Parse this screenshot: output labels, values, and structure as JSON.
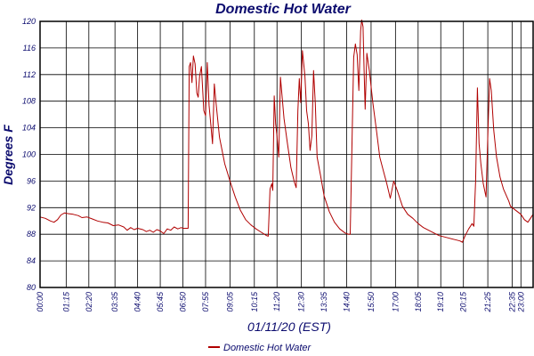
{
  "colors": {
    "series": "#b00000",
    "text": "#0b0b6e",
    "grid": "#000000",
    "background": "#ffffff"
  },
  "chart_data": {
    "type": "line",
    "title": "Domestic Hot Water",
    "xlabel": "01/11/20 (EST)",
    "ylabel": "Degrees F",
    "ylim": [
      80,
      120
    ],
    "yticks": [
      80,
      84,
      88,
      92,
      96,
      100,
      104,
      108,
      112,
      116,
      120
    ],
    "xlim": [
      "00:00",
      "23:35"
    ],
    "xticks": [
      "00:00",
      "01:15",
      "02:20",
      "03:35",
      "04:40",
      "05:45",
      "06:50",
      "07:55",
      "09:05",
      "10:15",
      "11:20",
      "12:30",
      "13:35",
      "14:40",
      "15:50",
      "17:00",
      "18:05",
      "19:10",
      "20:15",
      "21:25",
      "22:35",
      "23:00"
    ],
    "grid": true,
    "legend": "bottom-center",
    "series": [
      {
        "name": "Domestic Hot Water",
        "points": [
          [
            "00:00",
            90.6
          ],
          [
            "00:15",
            90.4
          ],
          [
            "00:30",
            90.0
          ],
          [
            "00:40",
            89.8
          ],
          [
            "00:50",
            90.2
          ],
          [
            "01:00",
            90.9
          ],
          [
            "01:10",
            91.2
          ],
          [
            "01:20",
            91.1
          ],
          [
            "01:35",
            91.0
          ],
          [
            "01:50",
            90.8
          ],
          [
            "02:00",
            90.5
          ],
          [
            "02:15",
            90.6
          ],
          [
            "02:30",
            90.3
          ],
          [
            "02:45",
            90.0
          ],
          [
            "03:00",
            89.8
          ],
          [
            "03:15",
            89.7
          ],
          [
            "03:30",
            89.3
          ],
          [
            "03:45",
            89.4
          ],
          [
            "04:00",
            89.1
          ],
          [
            "04:10",
            88.6
          ],
          [
            "04:20",
            89.0
          ],
          [
            "04:30",
            88.7
          ],
          [
            "04:40",
            88.9
          ],
          [
            "04:55",
            88.7
          ],
          [
            "05:05",
            88.4
          ],
          [
            "05:15",
            88.6
          ],
          [
            "05:25",
            88.3
          ],
          [
            "05:35",
            88.7
          ],
          [
            "05:45",
            88.5
          ],
          [
            "05:55",
            88.1
          ],
          [
            "06:05",
            88.8
          ],
          [
            "06:15",
            88.6
          ],
          [
            "06:25",
            89.1
          ],
          [
            "06:35",
            88.8
          ],
          [
            "06:45",
            89.0
          ],
          [
            "06:50",
            88.9
          ],
          [
            "07:05",
            88.9
          ],
          [
            "07:08",
            113.2
          ],
          [
            "07:12",
            113.8
          ],
          [
            "07:16",
            110.8
          ],
          [
            "07:20",
            114.8
          ],
          [
            "07:25",
            113.6
          ],
          [
            "07:30",
            109.2
          ],
          [
            "07:34",
            108.6
          ],
          [
            "07:38",
            111.8
          ],
          [
            "07:43",
            113.2
          ],
          [
            "07:50",
            106.6
          ],
          [
            "07:55",
            105.8
          ],
          [
            "08:00",
            113.8
          ],
          [
            "08:05",
            107.4
          ],
          [
            "08:10",
            104.6
          ],
          [
            "08:15",
            101.6
          ],
          [
            "08:20",
            110.6
          ],
          [
            "08:25",
            107.8
          ],
          [
            "08:35",
            102.6
          ],
          [
            "08:50",
            98.6
          ],
          [
            "09:05",
            96.0
          ],
          [
            "09:20",
            93.6
          ],
          [
            "09:35",
            91.6
          ],
          [
            "09:50",
            90.2
          ],
          [
            "10:05",
            89.4
          ],
          [
            "10:20",
            88.8
          ],
          [
            "10:35",
            88.3
          ],
          [
            "10:50",
            87.8
          ],
          [
            "10:55",
            87.7
          ],
          [
            "11:00",
            94.8
          ],
          [
            "11:05",
            95.6
          ],
          [
            "11:08",
            94.6
          ],
          [
            "11:12",
            108.8
          ],
          [
            "11:16",
            104.6
          ],
          [
            "11:20",
            102.8
          ],
          [
            "11:25",
            99.6
          ],
          [
            "11:30",
            111.6
          ],
          [
            "11:40",
            105.4
          ],
          [
            "11:50",
            101.6
          ],
          [
            "12:00",
            98.0
          ],
          [
            "12:10",
            95.8
          ],
          [
            "12:15",
            95.0
          ],
          [
            "12:20",
            106.6
          ],
          [
            "12:24",
            111.4
          ],
          [
            "12:28",
            107.8
          ],
          [
            "12:33",
            115.6
          ],
          [
            "12:40",
            111.8
          ],
          [
            "12:45",
            106.6
          ],
          [
            "12:50",
            104.6
          ],
          [
            "12:55",
            100.6
          ],
          [
            "13:00",
            102.8
          ],
          [
            "13:05",
            112.6
          ],
          [
            "13:10",
            107.6
          ],
          [
            "13:15",
            99.6
          ],
          [
            "13:25",
            96.8
          ],
          [
            "13:35",
            93.8
          ],
          [
            "13:50",
            91.4
          ],
          [
            "14:05",
            89.8
          ],
          [
            "14:20",
            88.8
          ],
          [
            "14:35",
            88.2
          ],
          [
            "14:45",
            88.0
          ],
          [
            "14:50",
            88.0
          ],
          [
            "15:00",
            114.6
          ],
          [
            "15:05",
            116.6
          ],
          [
            "15:10",
            115.0
          ],
          [
            "15:15",
            109.6
          ],
          [
            "15:20",
            118.6
          ],
          [
            "15:23",
            120.2
          ],
          [
            "15:27",
            119.2
          ],
          [
            "15:30",
            112.6
          ],
          [
            "15:33",
            106.8
          ],
          [
            "15:38",
            115.2
          ],
          [
            "15:45",
            112.6
          ],
          [
            "15:55",
            107.8
          ],
          [
            "16:05",
            103.8
          ],
          [
            "16:15",
            99.6
          ],
          [
            "16:25",
            97.6
          ],
          [
            "16:35",
            95.6
          ],
          [
            "16:45",
            93.4
          ],
          [
            "16:55",
            96.0
          ],
          [
            "17:05",
            94.6
          ],
          [
            "17:20",
            92.2
          ],
          [
            "17:35",
            91.0
          ],
          [
            "17:50",
            90.4
          ],
          [
            "18:05",
            89.6
          ],
          [
            "18:20",
            89.0
          ],
          [
            "18:35",
            88.6
          ],
          [
            "18:50",
            88.2
          ],
          [
            "19:05",
            87.8
          ],
          [
            "19:20",
            87.6
          ],
          [
            "19:35",
            87.4
          ],
          [
            "19:50",
            87.2
          ],
          [
            "20:05",
            87.0
          ],
          [
            "20:12",
            86.8
          ],
          [
            "20:20",
            87.8
          ],
          [
            "20:30",
            88.8
          ],
          [
            "20:40",
            89.6
          ],
          [
            "20:45",
            89.2
          ],
          [
            "20:50",
            96.0
          ],
          [
            "20:55",
            110.0
          ],
          [
            "21:00",
            101.6
          ],
          [
            "21:05",
            98.6
          ],
          [
            "21:12",
            95.6
          ],
          [
            "21:20",
            93.6
          ],
          [
            "21:25",
            102.8
          ],
          [
            "21:30",
            111.4
          ],
          [
            "21:35",
            109.6
          ],
          [
            "21:42",
            103.6
          ],
          [
            "21:50",
            99.6
          ],
          [
            "22:00",
            96.6
          ],
          [
            "22:10",
            94.8
          ],
          [
            "22:20",
            93.6
          ],
          [
            "22:25",
            93.0
          ],
          [
            "22:30",
            92.2
          ],
          [
            "22:40",
            91.8
          ],
          [
            "22:50",
            91.4
          ],
          [
            "23:00",
            91.0
          ],
          [
            "23:10",
            90.2
          ],
          [
            "23:20",
            89.8
          ],
          [
            "23:30",
            90.6
          ],
          [
            "23:35",
            91.0
          ]
        ]
      }
    ]
  }
}
